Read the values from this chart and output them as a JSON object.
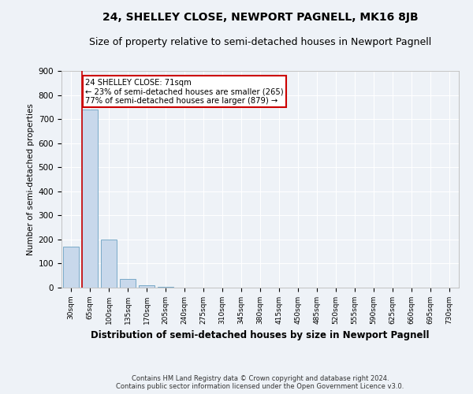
{
  "title": "24, SHELLEY CLOSE, NEWPORT PAGNELL, MK16 8JB",
  "subtitle": "Size of property relative to semi-detached houses in Newport Pagnell",
  "xlabel": "Distribution of semi-detached houses by size in Newport Pagnell",
  "ylabel": "Number of semi-detached properties",
  "footer_line1": "Contains HM Land Registry data © Crown copyright and database right 2024.",
  "footer_line2": "Contains public sector information licensed under the Open Government Licence v3.0.",
  "categories": [
    "30sqm",
    "65sqm",
    "100sqm",
    "135sqm",
    "170sqm",
    "205sqm",
    "240sqm",
    "275sqm",
    "310sqm",
    "345sqm",
    "380sqm",
    "415sqm",
    "450sqm",
    "485sqm",
    "520sqm",
    "555sqm",
    "590sqm",
    "625sqm",
    "660sqm",
    "695sqm",
    "730sqm"
  ],
  "values": [
    170,
    740,
    200,
    35,
    10,
    2,
    0,
    0,
    0,
    0,
    0,
    0,
    0,
    0,
    0,
    0,
    0,
    0,
    0,
    0,
    0
  ],
  "bar_color": "#c8d8eb",
  "bar_edge_color": "#7aaac8",
  "property_line_x": 0.6,
  "annotation_text_line1": "24 SHELLEY CLOSE: 71sqm",
  "annotation_text_line2": "← 23% of semi-detached houses are smaller (265)",
  "annotation_text_line3": "77% of semi-detached houses are larger (879) →",
  "ylim": [
    0,
    900
  ],
  "yticks": [
    0,
    100,
    200,
    300,
    400,
    500,
    600,
    700,
    800,
    900
  ],
  "background_color": "#eef2f7",
  "grid_color": "#ffffff",
  "title_fontsize": 10,
  "subtitle_fontsize": 9,
  "annotation_box_color": "#ffffff",
  "annotation_box_edge": "#cc0000",
  "red_line_color": "#cc0000"
}
